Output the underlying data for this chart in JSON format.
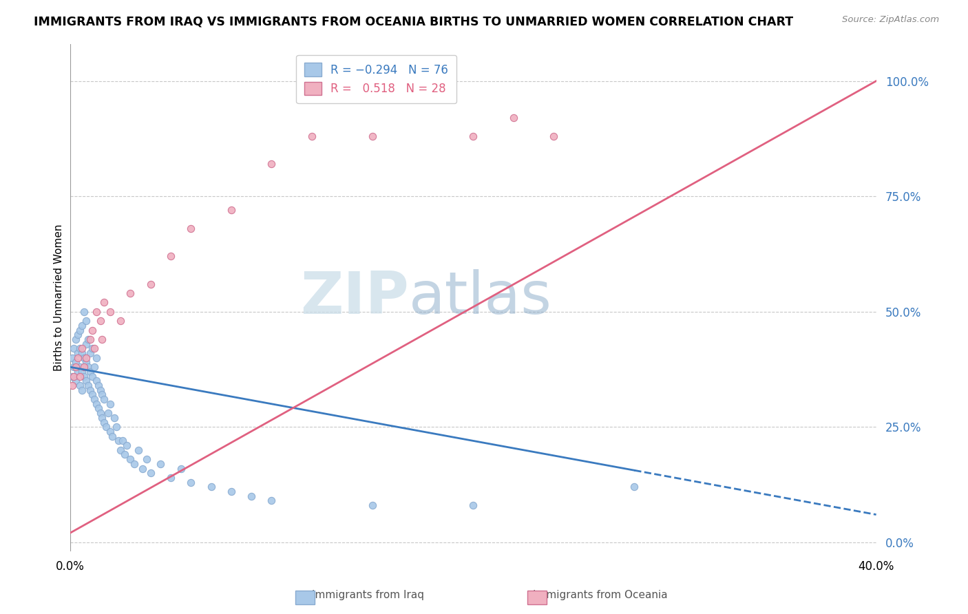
{
  "title": "IMMIGRANTS FROM IRAQ VS IMMIGRANTS FROM OCEANIA BIRTHS TO UNMARRIED WOMEN CORRELATION CHART",
  "source": "Source: ZipAtlas.com",
  "ylabel": "Births to Unmarried Women",
  "yticks": [
    0.0,
    0.25,
    0.5,
    0.75,
    1.0
  ],
  "ytick_labels": [
    "0.0%",
    "25.0%",
    "50.0%",
    "75.0%",
    "100.0%"
  ],
  "xlim": [
    0.0,
    0.4
  ],
  "ylim": [
    -0.02,
    1.08
  ],
  "watermark_zip": "ZIP",
  "watermark_atlas": "atlas",
  "series": [
    {
      "name": "Immigrants from Iraq",
      "color": "#a8c8e8",
      "R": -0.294,
      "N": 76,
      "trend_color": "#3a7abf",
      "trend_dashed": false
    },
    {
      "name": "Immigrants from Oceania",
      "color": "#f0b0c0",
      "R": 0.518,
      "N": 28,
      "trend_color": "#e06080",
      "trend_dashed": false
    }
  ],
  "iraq_x": [
    0.001,
    0.001,
    0.002,
    0.002,
    0.003,
    0.003,
    0.003,
    0.004,
    0.004,
    0.004,
    0.005,
    0.005,
    0.005,
    0.005,
    0.006,
    0.006,
    0.006,
    0.006,
    0.007,
    0.007,
    0.007,
    0.008,
    0.008,
    0.008,
    0.008,
    0.009,
    0.009,
    0.009,
    0.01,
    0.01,
    0.01,
    0.011,
    0.011,
    0.011,
    0.012,
    0.012,
    0.013,
    0.013,
    0.013,
    0.014,
    0.014,
    0.015,
    0.015,
    0.016,
    0.016,
    0.017,
    0.017,
    0.018,
    0.019,
    0.02,
    0.02,
    0.021,
    0.022,
    0.023,
    0.024,
    0.025,
    0.026,
    0.027,
    0.028,
    0.03,
    0.032,
    0.034,
    0.036,
    0.038,
    0.04,
    0.045,
    0.05,
    0.055,
    0.06,
    0.07,
    0.08,
    0.09,
    0.1,
    0.15,
    0.2,
    0.28
  ],
  "iraq_y": [
    0.36,
    0.4,
    0.38,
    0.42,
    0.35,
    0.39,
    0.44,
    0.37,
    0.41,
    0.45,
    0.34,
    0.38,
    0.42,
    0.46,
    0.33,
    0.37,
    0.41,
    0.47,
    0.36,
    0.4,
    0.5,
    0.35,
    0.39,
    0.43,
    0.48,
    0.34,
    0.38,
    0.44,
    0.33,
    0.37,
    0.41,
    0.32,
    0.36,
    0.42,
    0.31,
    0.38,
    0.3,
    0.35,
    0.4,
    0.29,
    0.34,
    0.28,
    0.33,
    0.27,
    0.32,
    0.26,
    0.31,
    0.25,
    0.28,
    0.24,
    0.3,
    0.23,
    0.27,
    0.25,
    0.22,
    0.2,
    0.22,
    0.19,
    0.21,
    0.18,
    0.17,
    0.2,
    0.16,
    0.18,
    0.15,
    0.17,
    0.14,
    0.16,
    0.13,
    0.12,
    0.11,
    0.1,
    0.09,
    0.08,
    0.08,
    0.12
  ],
  "oceania_x": [
    0.001,
    0.002,
    0.003,
    0.004,
    0.005,
    0.006,
    0.007,
    0.008,
    0.01,
    0.011,
    0.012,
    0.013,
    0.015,
    0.016,
    0.017,
    0.02,
    0.025,
    0.03,
    0.04,
    0.05,
    0.06,
    0.08,
    0.1,
    0.12,
    0.15,
    0.2,
    0.22,
    0.24
  ],
  "oceania_y": [
    0.34,
    0.36,
    0.38,
    0.4,
    0.36,
    0.42,
    0.38,
    0.4,
    0.44,
    0.46,
    0.42,
    0.5,
    0.48,
    0.44,
    0.52,
    0.5,
    0.48,
    0.54,
    0.56,
    0.62,
    0.68,
    0.72,
    0.82,
    0.88,
    0.88,
    0.88,
    0.92,
    0.88
  ],
  "iraq_trend": [
    0.0,
    0.4
  ],
  "iraq_trend_y": [
    0.38,
    0.06
  ],
  "oceania_trend": [
    0.0,
    0.4
  ],
  "oceania_trend_y": [
    0.02,
    1.0
  ]
}
